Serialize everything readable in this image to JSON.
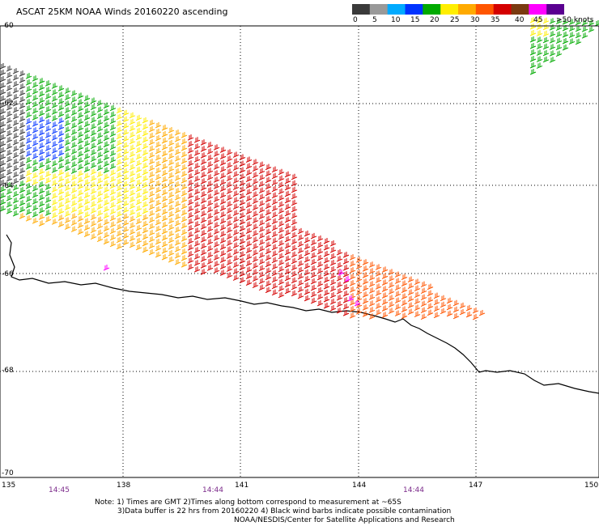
{
  "title": "ASCAT 25KM NOAA Winds 20160220 ascending",
  "colorbar": {
    "labels": [
      "0",
      "5",
      "10",
      "15",
      "20",
      "25",
      "30",
      "35",
      "40",
      "45",
      ">50 knots"
    ],
    "colors": [
      "#3a3a3a",
      "#999999",
      "#00aaff",
      "#0033ff",
      "#00aa00",
      "#ffee00",
      "#ffaa00",
      "#ff5500",
      "#d40000",
      "#7a3a10",
      "#ff00ff",
      "#5a0090"
    ]
  },
  "lat_labels": [
    "-60",
    "-62",
    "-64",
    "-66",
    "-68",
    "-70"
  ],
  "lon_labels": [
    "135",
    "138",
    "141",
    "144",
    "147",
    "150"
  ],
  "time_labels": [
    "14:45",
    "14:44",
    "14:44"
  ],
  "notes": [
    "Note: 1) Times are GMT 2)Times along bottom correspond to measurement at ~65S",
    "3)Data buffer is 22 hrs from 20160220 4) Black wind barbs indicate possible contamination",
    "NOAA/NESDIS/Center for Satellite Applications and Research"
  ]
}
